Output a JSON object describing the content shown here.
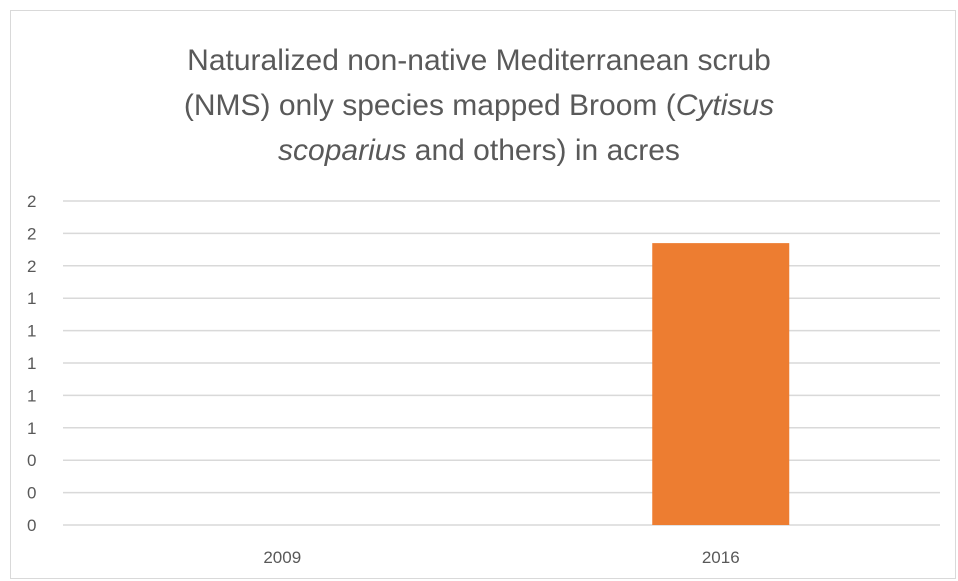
{
  "chart_data": {
    "type": "bar",
    "title": {
      "line1": "Naturalized non-native Mediterranean scrub",
      "line2_prefix": "(NMS) only species mapped Broom (",
      "line2_italic": "Cytisus",
      "line3_italic": "scoparius",
      "line3_suffix": " and others) in acres"
    },
    "categories": [
      "2009",
      "2016"
    ],
    "values": [
      0,
      1.74
    ],
    "ylim": [
      0,
      2
    ],
    "y_tick_values": [
      0,
      0.2,
      0.4,
      0.6,
      0.8,
      1.0,
      1.2,
      1.4,
      1.6,
      1.8,
      2.0
    ],
    "y_tick_labels": [
      "0",
      "0",
      "0",
      "1",
      "1",
      "1",
      "1",
      "1",
      "2",
      "2",
      "2"
    ],
    "grid": true,
    "legend": "none",
    "bar_color": "#ed7d31",
    "grid_color": "#d9d9d9",
    "text_color": "#595959"
  }
}
